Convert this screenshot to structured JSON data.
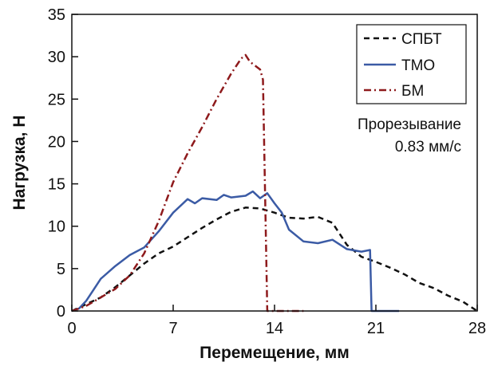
{
  "chart_data": {
    "type": "line",
    "title": "",
    "xlabel": "Перемещение, мм",
    "ylabel": "Нагрузка, Н",
    "xlim": [
      0,
      28
    ],
    "ylim": [
      0,
      35
    ],
    "xticks": [
      0,
      7,
      14,
      21,
      28
    ],
    "yticks": [
      0,
      5,
      10,
      15,
      20,
      25,
      30,
      35
    ],
    "grid": false,
    "legend_position": "top-right",
    "annotation": [
      "Прорезывание",
      "0.83 мм/с"
    ],
    "series": [
      {
        "name": "СПБТ",
        "color": "#111111",
        "dash": "dashed",
        "x": [
          0,
          1,
          2,
          3,
          4,
          5,
          6,
          7,
          8,
          9,
          10,
          11,
          12,
          13,
          14,
          15,
          16,
          17,
          18,
          19,
          20,
          21,
          22,
          23,
          24,
          25,
          26,
          27,
          28
        ],
        "y": [
          0,
          0.8,
          1.6,
          2.8,
          4.2,
          5.6,
          6.8,
          7.6,
          8.7,
          9.8,
          10.8,
          11.7,
          12.2,
          12.1,
          11.6,
          11,
          10.9,
          11.1,
          10.4,
          7.8,
          6.4,
          5.8,
          5.1,
          4.3,
          3.3,
          2.7,
          1.8,
          1.1,
          0
        ]
      },
      {
        "name": "ТМО",
        "color": "#3b5ba5",
        "dash": "solid",
        "x": [
          0,
          0.5,
          1,
          1.5,
          2,
          3,
          4,
          5,
          6,
          7,
          8,
          8.5,
          9,
          10,
          10.5,
          11,
          12,
          12.5,
          13,
          13.5,
          14,
          14.5,
          15,
          16,
          17,
          18,
          19,
          20,
          20.6,
          20.7,
          21,
          22,
          22.6
        ],
        "y": [
          0,
          0.3,
          1.2,
          2.5,
          3.8,
          5.3,
          6.6,
          7.5,
          9.4,
          11.6,
          13.2,
          12.7,
          13.3,
          13.1,
          13.7,
          13.4,
          13.6,
          14.1,
          13.3,
          13.9,
          12.7,
          11.6,
          9.6,
          8.2,
          8,
          8.4,
          7.3,
          7,
          7.2,
          0,
          0,
          0,
          0
        ]
      },
      {
        "name": "БМ",
        "color": "#8e1a1c",
        "dash": "dash-dot",
        "x": [
          0,
          1,
          2,
          3,
          4,
          5,
          6,
          7,
          8,
          9,
          10,
          11,
          11.7,
          12,
          12.3,
          13,
          13.2,
          13.5,
          13.6,
          14,
          15,
          16
        ],
        "y": [
          0,
          0.6,
          1.6,
          2.6,
          4.2,
          6.8,
          10.6,
          15.2,
          18.6,
          21.7,
          25,
          28,
          29.8,
          30.2,
          29.4,
          28.5,
          27.3,
          0,
          0,
          0,
          0,
          0
        ]
      }
    ]
  }
}
